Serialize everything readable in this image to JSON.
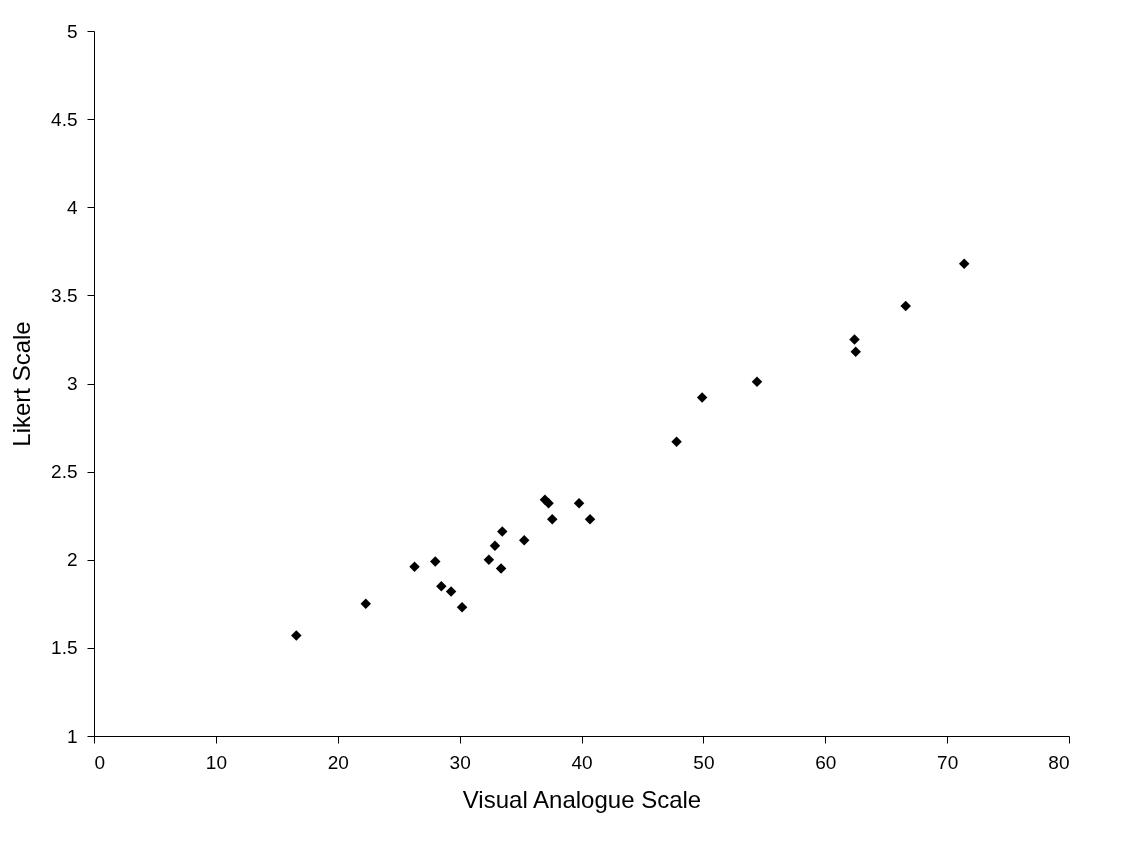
{
  "chart_data": {
    "type": "scatter",
    "xlabel": "Visual Analogue Scale",
    "ylabel": "Likert Scale",
    "x": [
      16.6,
      22.3,
      26.3,
      28.0,
      28.5,
      29.3,
      30.2,
      32.4,
      32.9,
      33.4,
      33.5,
      35.3,
      37.0,
      37.3,
      37.6,
      39.8,
      40.7,
      47.8,
      49.9,
      54.4,
      62.4,
      62.5,
      66.6,
      71.4
    ],
    "series": [
      {
        "color": "#000000",
        "values": [
          1.57,
          1.75,
          1.96,
          1.99,
          1.85,
          1.82,
          1.73,
          2.0,
          2.08,
          1.95,
          2.16,
          2.11,
          2.34,
          2.32,
          2.23,
          2.32,
          2.23,
          2.67,
          2.92,
          3.01,
          3.25,
          3.18,
          3.44,
          3.68
        ]
      }
    ],
    "xlim": [
      0,
      80
    ],
    "xticks": [
      0,
      10,
      20,
      30,
      40,
      50,
      60,
      70,
      80
    ],
    "ylim": [
      1,
      5
    ],
    "yticks": [
      1,
      1.5,
      2,
      2.5,
      3,
      3.5,
      4,
      4.5,
      5
    ],
    "marker": "diamond",
    "grid": false
  }
}
